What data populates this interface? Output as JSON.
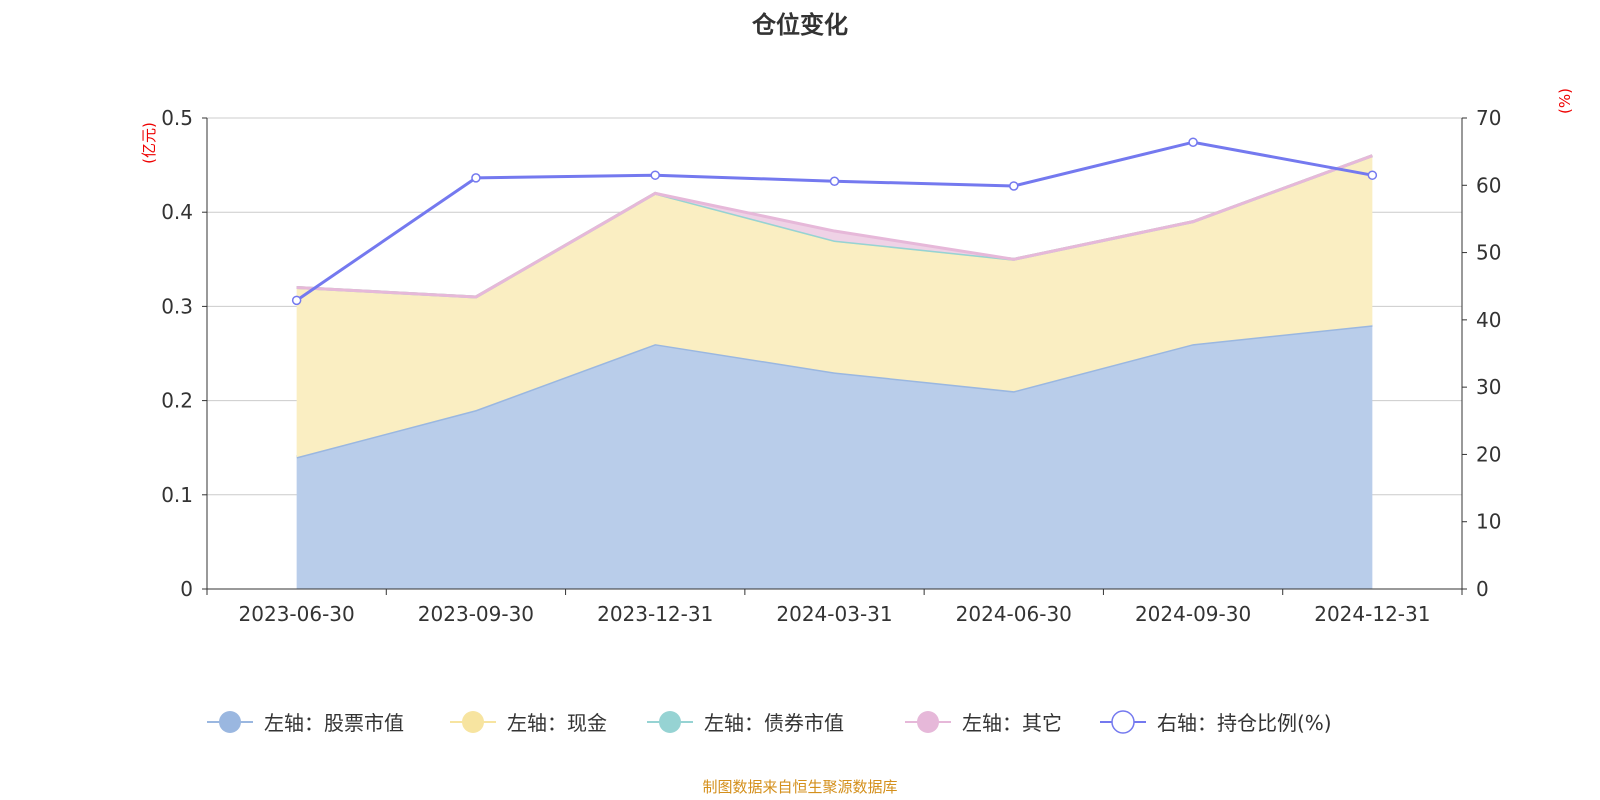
{
  "chart_data": {
    "type": "area",
    "title": "仓位变化",
    "categories": [
      "2023-06-30",
      "2023-09-30",
      "2023-12-31",
      "2024-03-31",
      "2024-06-30",
      "2024-09-30",
      "2024-12-31"
    ],
    "left_axis": {
      "unit": "(亿元)",
      "ylim": [
        0,
        0.5
      ],
      "ticks": [
        "0",
        "0.1",
        "0.2",
        "0.3",
        "0.4",
        "0.5"
      ]
    },
    "right_axis": {
      "unit": "(%)",
      "ylim": [
        0,
        70
      ],
      "ticks": [
        "0",
        "10",
        "20",
        "30",
        "40",
        "50",
        "60",
        "70"
      ]
    },
    "stacked": true,
    "grid": true,
    "legend_position": "bottom",
    "series": [
      {
        "name": "左轴：股票市值",
        "axis": "left",
        "color": "#9ab7e0",
        "fill": "#b9cdea",
        "values": [
          0.14,
          0.19,
          0.26,
          0.23,
          0.21,
          0.26,
          0.28
        ]
      },
      {
        "name": "左轴：现金",
        "axis": "left",
        "color": "#f7e4a0",
        "fill": "#faeec2",
        "values": [
          0.18,
          0.12,
          0.16,
          0.14,
          0.14,
          0.13,
          0.18
        ]
      },
      {
        "name": "左轴：债券市值",
        "axis": "left",
        "color": "#96d3d3",
        "fill": "#c6e8e8",
        "values": [
          0,
          0,
          0,
          0,
          0,
          0,
          0
        ]
      },
      {
        "name": "左轴：其它",
        "axis": "left",
        "color": "#e6b8d9",
        "fill": "#efd2e6",
        "values": [
          0,
          0,
          0,
          0.01,
          0,
          0,
          0
        ]
      },
      {
        "name": "右轴：持仓比例(%)",
        "axis": "right",
        "color": "#7479ef",
        "values": [
          42.9,
          61.1,
          61.5,
          60.6,
          59.9,
          66.4,
          61.5
        ]
      }
    ]
  },
  "source": "制图数据来自恒生聚源数据库"
}
